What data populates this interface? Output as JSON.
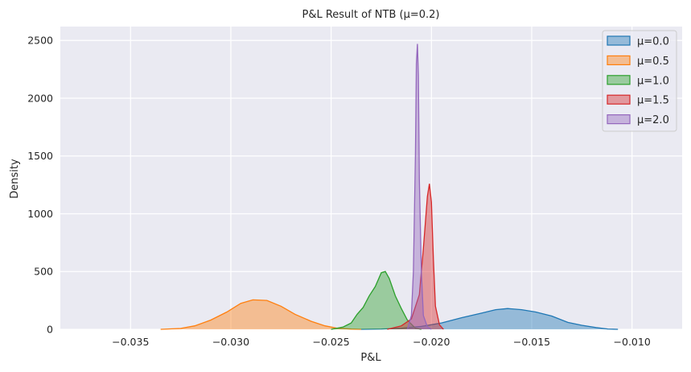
{
  "chart_data": {
    "type": "area",
    "title": "P&L Result of NTB (μ=0.2)",
    "xlabel": "P&L",
    "ylabel": "Density",
    "xlim": [
      -0.0385,
      -0.0075
    ],
    "ylim": [
      0,
      2620
    ],
    "grid": true,
    "legend_position": "top-right",
    "x_ticks": [
      -0.035,
      -0.03,
      -0.025,
      -0.02,
      -0.015,
      -0.01
    ],
    "x_tick_labels": [
      "−0.035",
      "−0.030",
      "−0.025",
      "−0.020",
      "−0.015",
      "−0.010"
    ],
    "y_ticks": [
      0,
      500,
      1000,
      1500,
      2000,
      2500
    ],
    "y_tick_labels": [
      "0",
      "500",
      "1000",
      "1500",
      "2000",
      "2500"
    ],
    "series": [
      {
        "name": "μ=0.0",
        "color": "#1f77b4",
        "points": [
          [
            -0.0235,
            0
          ],
          [
            -0.0225,
            3
          ],
          [
            -0.0215,
            10
          ],
          [
            -0.0205,
            25
          ],
          [
            -0.0195,
            55
          ],
          [
            -0.0185,
            100
          ],
          [
            -0.0175,
            140
          ],
          [
            -0.0168,
            170
          ],
          [
            -0.0162,
            180
          ],
          [
            -0.0155,
            170
          ],
          [
            -0.0148,
            150
          ],
          [
            -0.014,
            115
          ],
          [
            -0.0132,
            60
          ],
          [
            -0.0125,
            35
          ],
          [
            -0.0118,
            15
          ],
          [
            -0.0112,
            3
          ],
          [
            -0.0107,
            0
          ]
        ]
      },
      {
        "name": "μ=0.5",
        "color": "#ff7f0e",
        "points": [
          [
            -0.0335,
            0
          ],
          [
            -0.0325,
            8
          ],
          [
            -0.0318,
            30
          ],
          [
            -0.031,
            80
          ],
          [
            -0.0302,
            150
          ],
          [
            -0.0295,
            225
          ],
          [
            -0.0289,
            255
          ],
          [
            -0.0282,
            250
          ],
          [
            -0.0275,
            200
          ],
          [
            -0.0268,
            130
          ],
          [
            -0.026,
            70
          ],
          [
            -0.0253,
            30
          ],
          [
            -0.0247,
            10
          ],
          [
            -0.024,
            2
          ],
          [
            -0.0235,
            0
          ]
        ]
      },
      {
        "name": "μ=1.0",
        "color": "#2ca02c",
        "points": [
          [
            -0.025,
            0
          ],
          [
            -0.0244,
            20
          ],
          [
            -0.024,
            55
          ],
          [
            -0.0237,
            130
          ],
          [
            -0.0234,
            190
          ],
          [
            -0.0231,
            290
          ],
          [
            -0.0228,
            370
          ],
          [
            -0.0225,
            490
          ],
          [
            -0.0223,
            500
          ],
          [
            -0.0221,
            440
          ],
          [
            -0.0218,
            290
          ],
          [
            -0.0215,
            180
          ],
          [
            -0.0212,
            80
          ],
          [
            -0.0208,
            10
          ],
          [
            -0.0205,
            0
          ]
        ]
      },
      {
        "name": "μ=1.5",
        "color": "#d62728",
        "points": [
          [
            -0.0222,
            0
          ],
          [
            -0.0215,
            30
          ],
          [
            -0.021,
            90
          ],
          [
            -0.0206,
            300
          ],
          [
            -0.0204,
            700
          ],
          [
            -0.0202,
            1150
          ],
          [
            -0.0201,
            1260
          ],
          [
            -0.02,
            1100
          ],
          [
            -0.0199,
            600
          ],
          [
            -0.0198,
            200
          ],
          [
            -0.0196,
            40
          ],
          [
            -0.0194,
            0
          ]
        ]
      },
      {
        "name": "μ=2.0",
        "color": "#9467bd",
        "points": [
          [
            -0.0212,
            0
          ],
          [
            -0.021,
            120
          ],
          [
            -0.0209,
            500
          ],
          [
            -0.0208,
            1500
          ],
          [
            -0.02075,
            2300
          ],
          [
            -0.0207,
            2470
          ],
          [
            -0.02065,
            2200
          ],
          [
            -0.0206,
            1300
          ],
          [
            -0.0205,
            500
          ],
          [
            -0.0204,
            120
          ],
          [
            -0.0202,
            20
          ],
          [
            -0.02,
            0
          ]
        ]
      }
    ]
  }
}
